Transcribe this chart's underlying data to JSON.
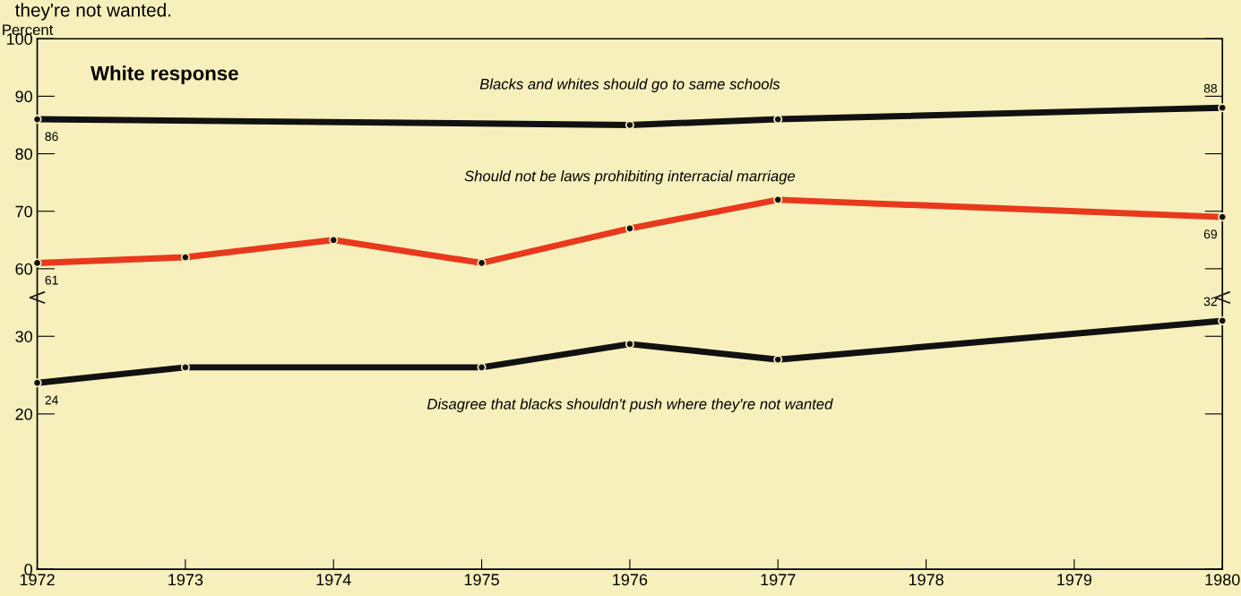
{
  "chart_data": [
    {
      "type": "line",
      "title": "they're not wanted.",
      "ylabel": "Percent",
      "xlim": [
        1972,
        1980
      ],
      "ylim": [
        55,
        100
      ],
      "yticks": [
        60,
        70,
        80,
        90,
        100
      ],
      "tick_labels": "y",
      "marker": "circle",
      "line_style": "solid",
      "series": [
        {
          "name": "Blacks and whites should go to same schools",
          "color": "#111111",
          "x": [
            1972,
            1976,
            1977,
            1980
          ],
          "values": [
            86,
            85,
            86,
            88
          ],
          "value_labels": [
            "86",
            null,
            null,
            "88"
          ]
        },
        {
          "name": "Should not be laws prohibiting interracial marriage",
          "color": "#e8391d",
          "x": [
            1972,
            1973,
            1974,
            1975,
            1976,
            1977,
            1980
          ],
          "values": [
            61,
            62,
            65,
            61,
            67,
            72,
            69
          ],
          "value_labels": [
            "61",
            null,
            null,
            null,
            null,
            null,
            "69"
          ]
        }
      ],
      "annotations": [
        "White response"
      ]
    },
    {
      "type": "line",
      "xlim": [
        1972,
        1980
      ],
      "xticks": [
        1972,
        1973,
        1974,
        1975,
        1976,
        1977,
        1978,
        1979,
        1980
      ],
      "ylim": [
        0,
        35
      ],
      "yticks": [
        0,
        20,
        30
      ],
      "marker": "circle",
      "line_style": "solid",
      "series": [
        {
          "name": "Disagree that blacks shouldn't push where they're not wanted",
          "color": "#111111",
          "x": [
            1972,
            1973,
            1975,
            1976,
            1977,
            1980
          ],
          "values": [
            24,
            26,
            26,
            29,
            27,
            32
          ],
          "value_labels": [
            "24",
            null,
            null,
            null,
            null,
            "32"
          ]
        }
      ]
    }
  ]
}
